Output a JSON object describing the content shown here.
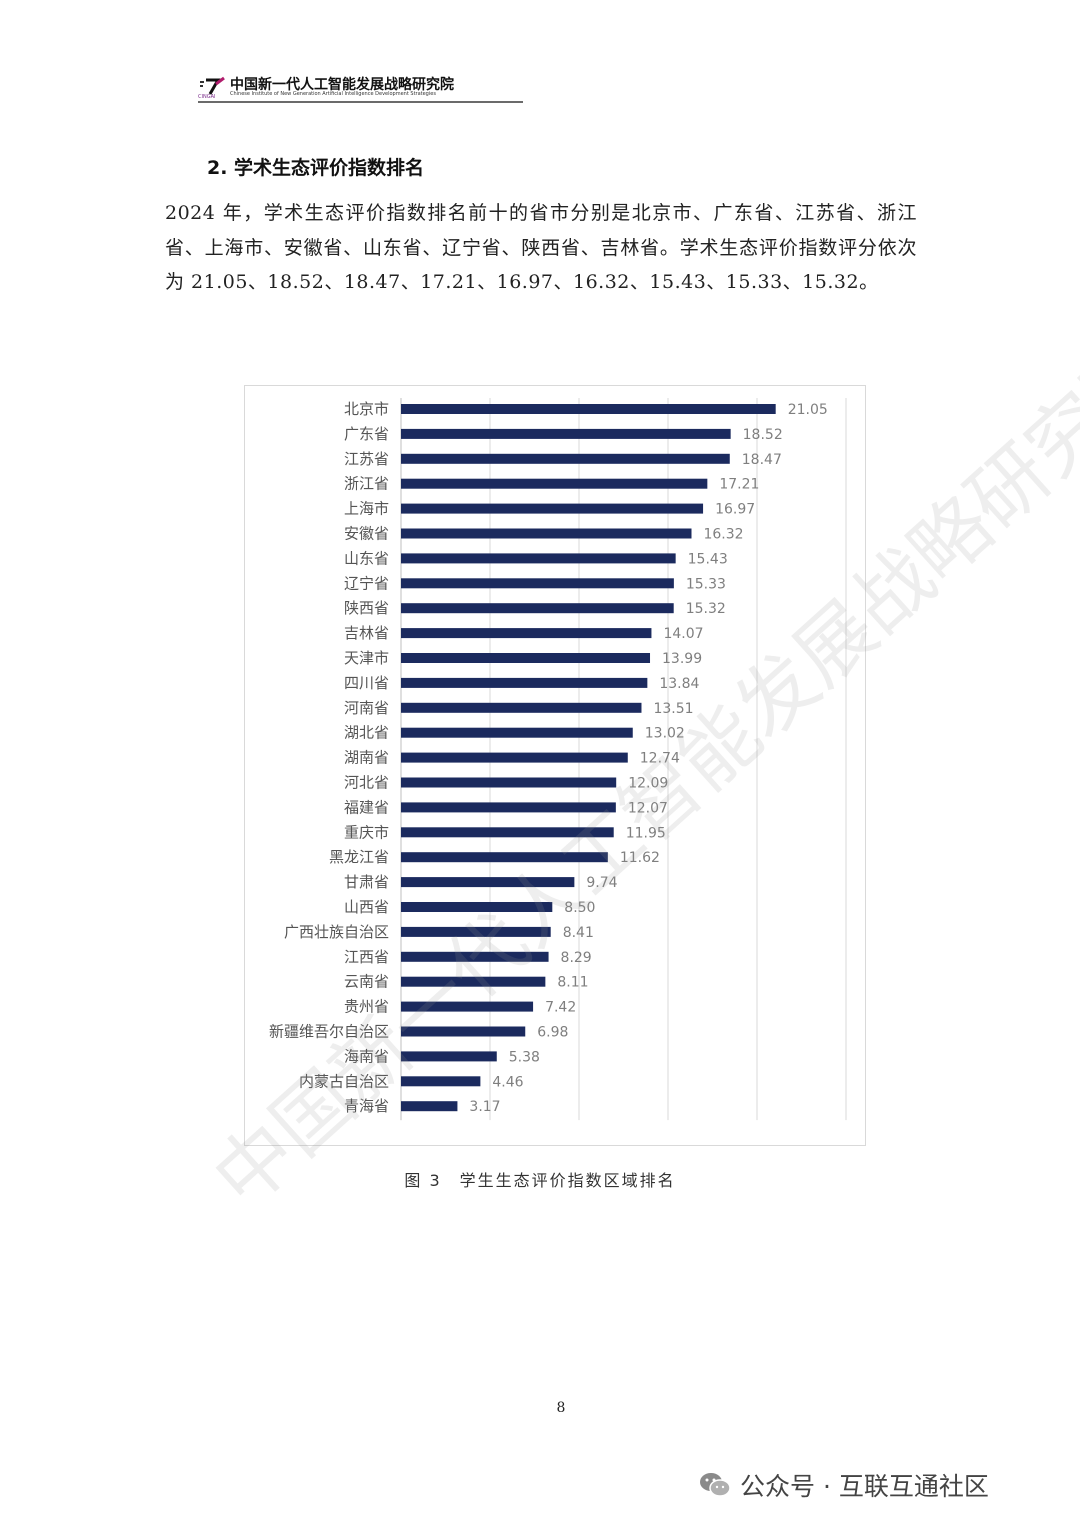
{
  "header": {
    "org_cn": "中国新一代人工智能发展战略研究院",
    "org_en": "Chinese Institute of New Generation Artificial Intelligence Development Strategies",
    "logo_sub": "CINGAI"
  },
  "section": {
    "title": "2. 学术生态评价指数排名",
    "paragraph": "2024 年，学术生态评价指数排名前十的省市分别是北京市、广东省、江苏省、浙江省、上海市、安徽省、山东省、辽宁省、陕西省、吉林省。学术生态评价指数评分依次为 21.05、18.52、18.47、17.21、16.97、16.32、15.43、15.33、15.32。"
  },
  "chart_data": {
    "type": "bar",
    "orientation": "horizontal",
    "categories": [
      "北京市",
      "广东省",
      "江苏省",
      "浙江省",
      "上海市",
      "安徽省",
      "山东省",
      "辽宁省",
      "陕西省",
      "吉林省",
      "天津市",
      "四川省",
      "河南省",
      "湖北省",
      "湖南省",
      "河北省",
      "福建省",
      "重庆市",
      "黑龙江省",
      "甘肃省",
      "山西省",
      "广西壮族自治区",
      "江西省",
      "云南省",
      "贵州省",
      "新疆维吾尔自治区",
      "海南省",
      "内蒙古自治区",
      "青海省"
    ],
    "values": [
      21.05,
      18.52,
      18.47,
      17.21,
      16.97,
      16.32,
      15.43,
      15.33,
      15.32,
      14.07,
      13.99,
      13.84,
      13.51,
      13.02,
      12.74,
      12.09,
      12.07,
      11.95,
      11.62,
      9.74,
      8.5,
      8.41,
      8.29,
      8.11,
      7.42,
      6.98,
      5.38,
      4.46,
      3.17
    ],
    "value_labels": [
      "21.05",
      "18.52",
      "18.47",
      "17.21",
      "16.97",
      "16.32",
      "15.43",
      "15.33",
      "15.32",
      "14.07",
      "13.99",
      "13.84",
      "13.51",
      "13.02",
      "12.74",
      "12.09",
      "12.07",
      "11.95",
      "11.62",
      "9.74",
      "8.50",
      "8.41",
      "8.29",
      "8.11",
      "7.42",
      "6.98",
      "5.38",
      "4.46",
      "3.17"
    ],
    "xlim": [
      0,
      25
    ],
    "grid": true,
    "bar_color": "#1b2a5e"
  },
  "caption": "图 3　学生生态评价指数区域排名",
  "page_number": "8",
  "footer": {
    "text": "公众号 · 互联互通社区"
  },
  "watermark": "中国新一代人工智能发展战略研究院",
  "icons": {
    "wechat": "wechat-icon"
  }
}
